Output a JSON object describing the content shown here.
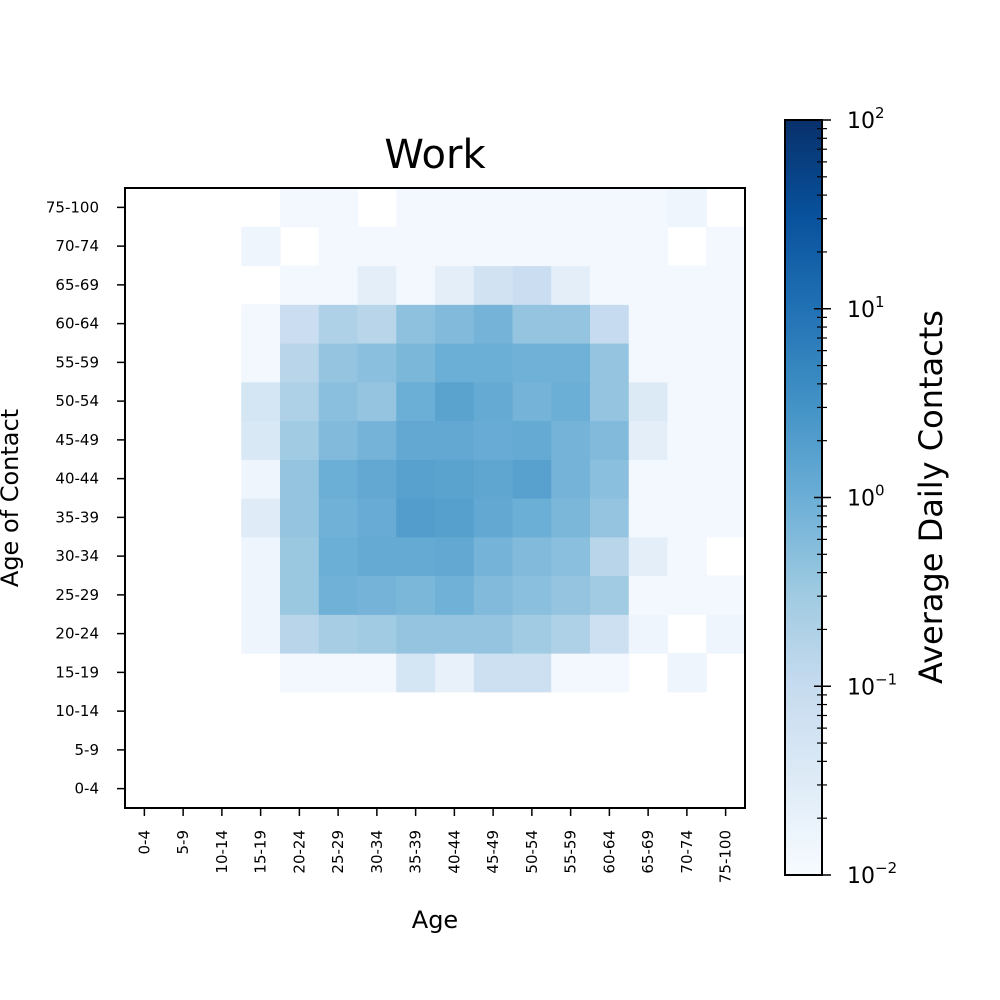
{
  "chart_data": {
    "type": "heatmap",
    "title": "Work",
    "xlabel": "Age",
    "ylabel": "Age of Contact",
    "x_categories": [
      "0-4",
      "5-9",
      "10-14",
      "15-19",
      "20-24",
      "25-29",
      "30-34",
      "35-39",
      "40-44",
      "45-49",
      "50-54",
      "55-59",
      "60-64",
      "65-69",
      "70-74",
      "75-100"
    ],
    "y_categories": [
      "0-4",
      "5-9",
      "10-14",
      "15-19",
      "20-24",
      "25-29",
      "30-34",
      "35-39",
      "40-44",
      "45-49",
      "50-54",
      "55-59",
      "60-64",
      "65-69",
      "70-74",
      "75-100"
    ],
    "values": [
      [
        0,
        0,
        0,
        0,
        0,
        0,
        0,
        0,
        0,
        0,
        0,
        0,
        0,
        0,
        0,
        0
      ],
      [
        0,
        0,
        0,
        0,
        0,
        0,
        0,
        0,
        0,
        0,
        0,
        0,
        0,
        0,
        0,
        0
      ],
      [
        0,
        0,
        0,
        0,
        0,
        0,
        0,
        0,
        0,
        0,
        0,
        0,
        0,
        0,
        0,
        0
      ],
      [
        0,
        0,
        0,
        0,
        0.012,
        0.012,
        0.012,
        0.05,
        0.02,
        0.07,
        0.07,
        0.012,
        0.012,
        0,
        0.015,
        0
      ],
      [
        0,
        0,
        0,
        0.015,
        0.15,
        0.25,
        0.3,
        0.4,
        0.4,
        0.4,
        0.3,
        0.2,
        0.07,
        0.015,
        0,
        0.015
      ],
      [
        0,
        0,
        0,
        0.015,
        0.35,
        0.9,
        0.8,
        0.7,
        0.9,
        0.6,
        0.5,
        0.4,
        0.3,
        0.012,
        0.012,
        0.012
      ],
      [
        0,
        0,
        0,
        0.015,
        0.35,
        1.0,
        1.2,
        1.2,
        1.3,
        0.8,
        0.6,
        0.5,
        0.15,
        0.025,
        0.012,
        0
      ],
      [
        0,
        0,
        0,
        0.03,
        0.4,
        0.9,
        1.1,
        2.0,
        1.8,
        1.3,
        1.0,
        0.7,
        0.4,
        0.012,
        0.012,
        0.012
      ],
      [
        0,
        0,
        0,
        0.015,
        0.4,
        1.0,
        1.3,
        1.7,
        1.6,
        1.4,
        1.7,
        0.8,
        0.5,
        0.012,
        0.012,
        0.012
      ],
      [
        0,
        0,
        0,
        0.04,
        0.3,
        0.6,
        0.8,
        1.3,
        1.3,
        1.1,
        1.2,
        0.8,
        0.6,
        0.025,
        0.012,
        0.012
      ],
      [
        0,
        0,
        0,
        0.05,
        0.2,
        0.5,
        0.4,
        1.0,
        1.6,
        1.2,
        0.8,
        1.0,
        0.4,
        0.035,
        0.012,
        0.012
      ],
      [
        0,
        0,
        0,
        0.012,
        0.15,
        0.4,
        0.5,
        0.7,
        1.0,
        1.0,
        0.9,
        0.9,
        0.4,
        0.012,
        0.012,
        0.012
      ],
      [
        0,
        0,
        0,
        0.012,
        0.08,
        0.2,
        0.15,
        0.45,
        0.6,
        0.8,
        0.4,
        0.4,
        0.1,
        0.012,
        0.012,
        0.012
      ],
      [
        0,
        0,
        0,
        0,
        0.012,
        0.012,
        0.025,
        0.012,
        0.025,
        0.06,
        0.08,
        0.025,
        0.012,
        0.012,
        0.012,
        0.012
      ],
      [
        0,
        0,
        0,
        0.015,
        0,
        0.012,
        0.012,
        0.012,
        0.012,
        0.012,
        0.012,
        0.012,
        0.012,
        0.012,
        0,
        0.012
      ],
      [
        0,
        0,
        0,
        0,
        0.012,
        0.012,
        0,
        0.012,
        0.012,
        0.012,
        0.012,
        0.012,
        0.012,
        0.012,
        0.015,
        0
      ]
    ],
    "values_orientation": "values[row][col], row index 0 = '0-4' (bottom row), col index 0 = x '0-4'",
    "zero_means": "no data (white)",
    "colormap": "Blues",
    "colorbar": {
      "label": "Average Daily Contacts",
      "scale": "log",
      "range": [
        0.01,
        100
      ],
      "ticks": [
        {
          "base": "10",
          "exp": "−2",
          "value": 0.01
        },
        {
          "base": "10",
          "exp": "−1",
          "value": 0.1
        },
        {
          "base": "10",
          "exp": "0",
          "value": 1
        },
        {
          "base": "10",
          "exp": "1",
          "value": 10
        },
        {
          "base": "10",
          "exp": "2",
          "value": 100
        }
      ]
    },
    "grid": false
  }
}
